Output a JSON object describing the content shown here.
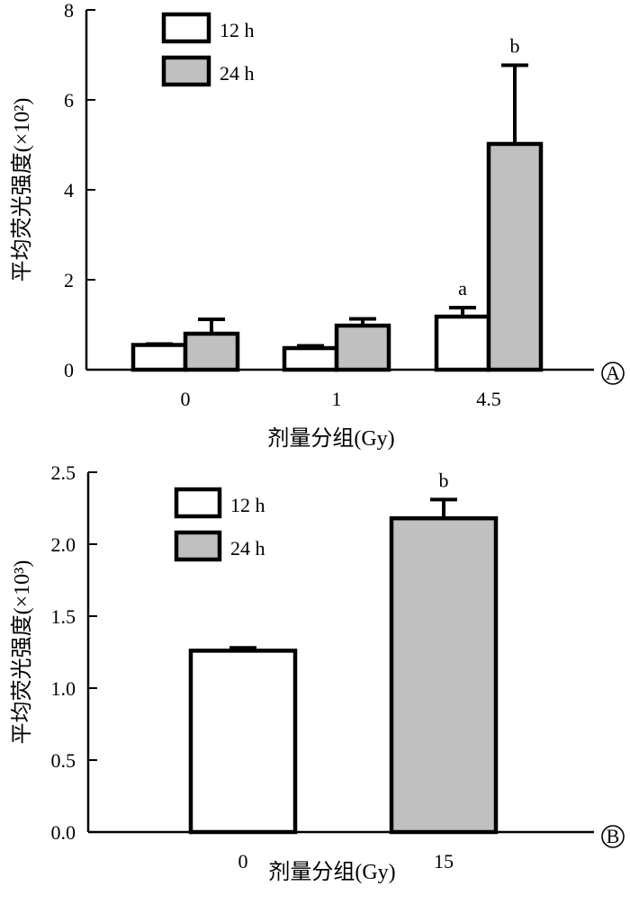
{
  "chart_data": [
    {
      "type": "bar",
      "panel_label": "A",
      "categories": [
        "0",
        "1",
        "4.5"
      ],
      "series": [
        {
          "name": "12 h",
          "values": [
            0.55,
            0.48,
            1.18
          ],
          "errors": [
            0.02,
            0.05,
            0.2
          ],
          "color": "#ffffff"
        },
        {
          "name": "24 h",
          "values": [
            0.8,
            0.98,
            5.02
          ],
          "errors": [
            0.32,
            0.15,
            1.75
          ],
          "color": "#c0c0c0"
        }
      ],
      "annotations": [
        {
          "category_index": 2,
          "series_index": 0,
          "text": "a"
        },
        {
          "category_index": 2,
          "series_index": 1,
          "text": "b"
        }
      ],
      "xlabel": "剂量分组(Gy)",
      "ylabel": "平均荧光强度(×10²)",
      "ylim": [
        0,
        8
      ],
      "yticks": [
        "0",
        "2",
        "4",
        "6",
        "8"
      ],
      "legend_position": "top-left",
      "grid": false
    },
    {
      "type": "bar",
      "panel_label": "B",
      "categories": [
        "0",
        "15"
      ],
      "series": [
        {
          "name": "12 h",
          "values": [
            1.26,
            null
          ],
          "errors": [
            0.02,
            null
          ],
          "color": "#ffffff"
        },
        {
          "name": "24 h",
          "values": [
            null,
            2.18
          ],
          "errors": [
            null,
            0.13
          ],
          "color": "#c0c0c0"
        }
      ],
      "annotations": [
        {
          "category_index": 1,
          "series_index": 1,
          "text": "b"
        }
      ],
      "xlabel": "剂量分组(Gy)",
      "ylabel": "平均荧光强度(×10³)",
      "ylim": [
        0,
        2.5
      ],
      "yticks": [
        "0.0",
        "0.5",
        "1.0",
        "1.5",
        "2.0",
        "2.5"
      ],
      "legend_position": "top-left",
      "grid": false
    }
  ]
}
